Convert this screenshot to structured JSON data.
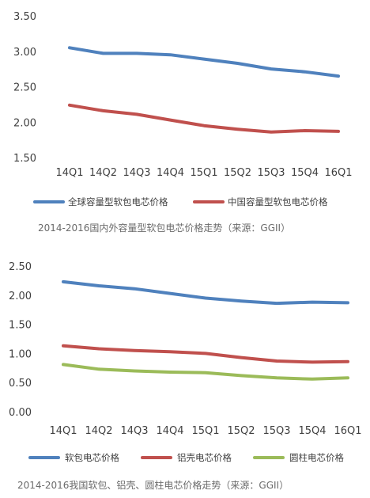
{
  "chart_data": [
    {
      "type": "line",
      "categories": [
        "14Q1",
        "14Q2",
        "14Q3",
        "14Q4",
        "15Q1",
        "15Q2",
        "15Q3",
        "15Q4",
        "16Q1"
      ],
      "ylim": [
        1.5,
        3.5
      ],
      "yticks": [
        "3.50",
        "3.00",
        "2.50",
        "2.00",
        "1.50"
      ],
      "grid": false,
      "legend_position": "bottom",
      "series": [
        {
          "name": "全球容量型软包电芯价格",
          "color": "#4f81bd",
          "values": [
            3.05,
            2.97,
            2.97,
            2.95,
            2.89,
            2.83,
            2.75,
            2.71,
            2.65
          ]
        },
        {
          "name": "中国容量型软包电芯价格",
          "color": "#c0504d",
          "values": [
            2.24,
            2.16,
            2.11,
            2.03,
            1.95,
            1.9,
            1.86,
            1.88,
            1.87
          ]
        }
      ],
      "caption": "2014-2016国内外容量型软包电芯价格走势（来源：GGII）"
    },
    {
      "type": "line",
      "categories": [
        "14Q1",
        "14Q2",
        "14Q3",
        "14Q4",
        "15Q1",
        "15Q2",
        "15Q3",
        "15Q4",
        "16Q1"
      ],
      "ylim": [
        0,
        2.5
      ],
      "yticks": [
        "2.50",
        "2.00",
        "1.50",
        "1.00",
        "0.50",
        "0.00"
      ],
      "grid": false,
      "legend_position": "bottom",
      "series": [
        {
          "name": "软包电芯价格",
          "color": "#4f81bd",
          "values": [
            2.23,
            2.16,
            2.11,
            2.03,
            1.95,
            1.9,
            1.86,
            1.88,
            1.87
          ]
        },
        {
          "name": "铝壳电芯价格",
          "color": "#c0504d",
          "values": [
            1.13,
            1.08,
            1.05,
            1.03,
            1.0,
            0.93,
            0.87,
            0.85,
            0.86
          ]
        },
        {
          "name": "圆柱电芯价格",
          "color": "#9bbb59",
          "values": [
            0.81,
            0.73,
            0.7,
            0.68,
            0.67,
            0.62,
            0.58,
            0.56,
            0.58
          ]
        }
      ],
      "caption": "2014-2016我国软包、铝壳、圆柱电芯价格走势（来源：GGII）"
    }
  ]
}
